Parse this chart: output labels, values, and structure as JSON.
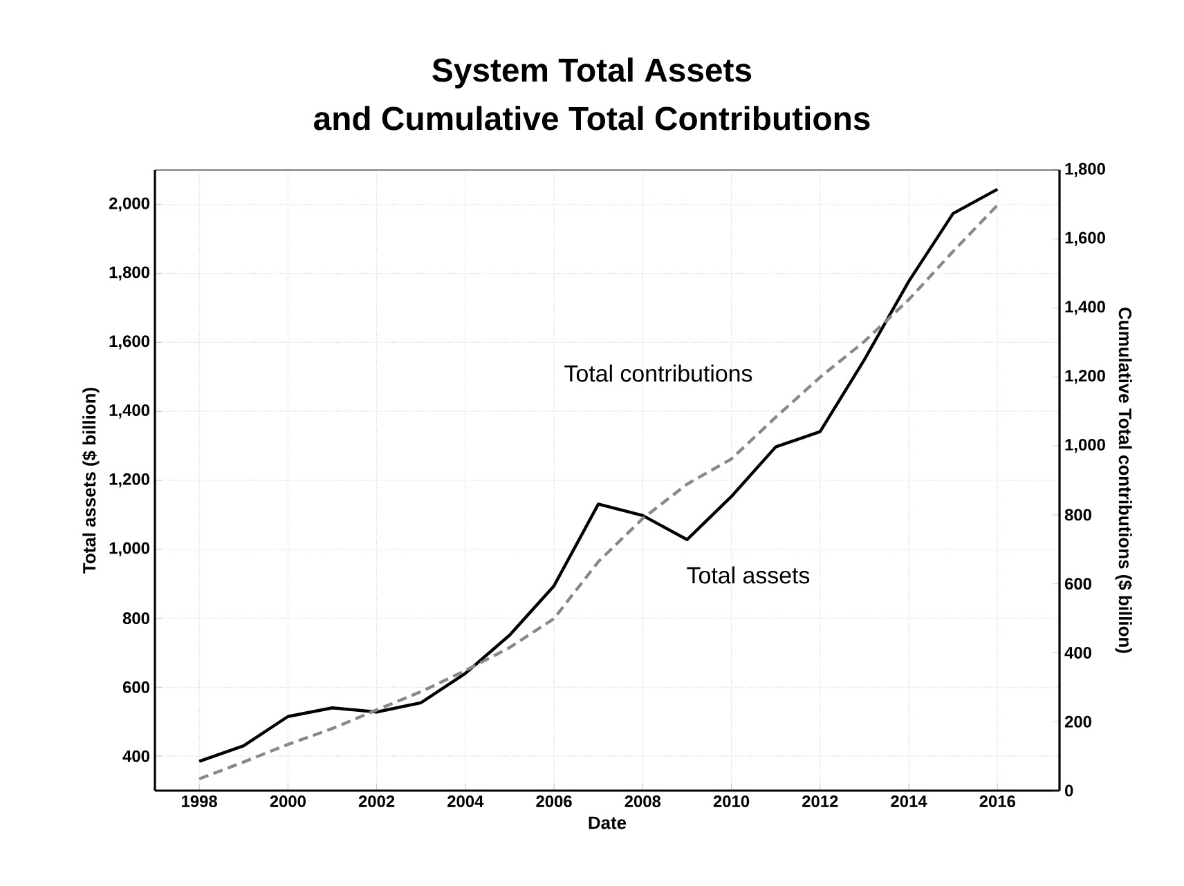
{
  "chart_data": {
    "type": "line",
    "title": "System Total Assets",
    "subtitle": "and Cumulative Total Contributions",
    "xlabel": "Date",
    "ylabel": "Total assets ($ billion)",
    "y2label": "Cumulative Total contributions ($ billion)",
    "x": [
      1998,
      1999,
      2000,
      2001,
      2002,
      2003,
      2004,
      2005,
      2006,
      2007,
      2008,
      2009,
      2010,
      2011,
      2012,
      2013,
      2014,
      2015,
      2016
    ],
    "series": [
      {
        "color": "#000000",
        "line_style": "solid",
        "values": [
          385,
          430,
          515,
          540,
          528,
          555,
          640,
          751,
          894,
          1131,
          1098,
          1028,
          1153,
          1297,
          1341,
          1550,
          1777,
          1974,
          2044
        ]
      },
      {
        "color": "#888888",
        "line_style": "dashed",
        "axis": "y2",
        "values": [
          34,
          83,
          134,
          180,
          234,
          287,
          348,
          415,
          499,
          664,
          789,
          889,
          962,
          1083,
          1199,
          1303,
          1424,
          1564,
          1698
        ]
      }
    ],
    "xlim": [
      1997,
      2017.4
    ],
    "xticks": [
      1998,
      2000,
      2002,
      2004,
      2006,
      2008,
      2010,
      2012,
      2014,
      2016
    ],
    "ylim": [
      300,
      2100
    ],
    "yticks": [
      {
        "value": 400,
        "label": "400"
      },
      {
        "value": 600,
        "label": "600"
      },
      {
        "value": 800,
        "label": "800"
      },
      {
        "value": 1000,
        "label": "1,000"
      },
      {
        "value": 1200,
        "label": "1,200"
      },
      {
        "value": 1400,
        "label": "1,400"
      },
      {
        "value": 1600,
        "label": "1,600"
      },
      {
        "value": 1800,
        "label": "1,800"
      },
      {
        "value": 2000,
        "label": "2,000"
      }
    ],
    "y2lim": [
      0,
      1800
    ],
    "y2ticks": [
      0,
      200,
      400,
      600,
      800,
      {
        "value": 1000,
        "label": "1,000"
      },
      {
        "value": 1200,
        "label": "1,200"
      },
      {
        "value": 1400,
        "label": "1,400"
      },
      {
        "value": 1600,
        "label": "1,600"
      },
      {
        "value": 1800,
        "label": "1,800"
      }
    ],
    "grid": true,
    "annotations": [
      "Total contributions",
      "Total assets"
    ]
  }
}
